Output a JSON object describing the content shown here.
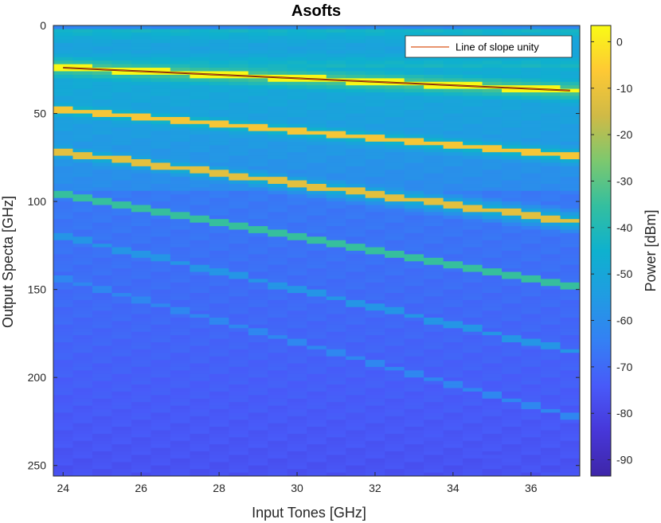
{
  "chart_data": {
    "type": "heatmap",
    "title": "Asofts",
    "xlabel": "Input Tones [GHz]",
    "ylabel": "Output Specta [GHz]",
    "colorbar_label": "Power [dBm]",
    "xlim": [
      23.75,
      37.25
    ],
    "ylim": [
      0,
      256
    ],
    "y_reversed": true,
    "clim": [
      -93.5,
      3.5
    ],
    "colormap": "parula",
    "xticks": [
      "24",
      "26",
      "28",
      "30",
      "32",
      "34",
      "36"
    ],
    "yticks": [
      "0",
      "50",
      "100",
      "150",
      "200",
      "250"
    ],
    "cticks": [
      "0",
      "-10",
      "-20",
      "-30",
      "-40",
      "-50",
      "-60",
      "-70",
      "-80",
      "-90"
    ],
    "input_tones_ghz": [
      24,
      24.5,
      25,
      25.5,
      26,
      26.5,
      27,
      27.5,
      28,
      28.5,
      29,
      29.5,
      30,
      30.5,
      31,
      31.5,
      32,
      32.5,
      33,
      33.5,
      34,
      34.5,
      35,
      35.5,
      36,
      36.5,
      37
    ],
    "harmonics": [
      {
        "order": 1,
        "frequency_ghz": [
          24,
          24.5,
          25,
          25.5,
          26,
          26.5,
          27,
          27.5,
          28,
          28.5,
          29,
          29.5,
          30,
          30.5,
          31,
          31.5,
          32,
          32.5,
          33,
          33.5,
          34,
          34.5,
          35,
          35.5,
          36,
          36.5,
          37
        ],
        "peak_dbm": 3
      },
      {
        "order": 2,
        "frequency_ghz": [
          48,
          49,
          50,
          51,
          52,
          53,
          54,
          55,
          56,
          57,
          58,
          59,
          60,
          61,
          62,
          63,
          64,
          65,
          66,
          67,
          68,
          69,
          70,
          71,
          72,
          73,
          74
        ],
        "peak_dbm": -8
      },
      {
        "order": 3,
        "frequency_ghz": [
          72,
          73.5,
          75,
          76.5,
          78,
          79.5,
          81,
          82.5,
          84,
          85.5,
          87,
          88.5,
          90,
          91.5,
          93,
          94.5,
          96,
          97.5,
          99,
          100.5,
          102,
          103.5,
          105,
          106.5,
          108,
          109.5,
          111
        ],
        "peak_dbm": -12
      },
      {
        "order": 4,
        "frequency_ghz": [
          96,
          98,
          100,
          102,
          104,
          106,
          108,
          110,
          112,
          114,
          116,
          118,
          120,
          122,
          124,
          126,
          128,
          130,
          132,
          134,
          136,
          138,
          140,
          142,
          144,
          146,
          148
        ],
        "peak_dbm": -35
      },
      {
        "order": 5,
        "frequency_ghz": [
          120,
          122.5,
          125,
          127.5,
          130,
          132.5,
          135,
          137.5,
          140,
          142.5,
          145,
          147.5,
          150,
          152.5,
          155,
          157.5,
          160,
          162.5,
          165,
          167.5,
          170,
          172.5,
          175,
          177.5,
          180,
          182.5,
          185
        ],
        "peak_dbm": -57
      },
      {
        "order": 6,
        "frequency_ghz": [
          144,
          147,
          150,
          153,
          156,
          159,
          162,
          165,
          168,
          171,
          174,
          177,
          180,
          183,
          186,
          189,
          192,
          195,
          198,
          201,
          204,
          207,
          210,
          213,
          216,
          219,
          222
        ],
        "peak_dbm": -62
      },
      {
        "order": 7,
        "frequency_ghz": [
          168,
          171.5,
          175,
          178.5,
          182,
          185.5,
          189,
          192.5,
          196,
          199.5,
          203,
          206.5,
          210,
          213.5,
          217,
          220.5,
          224,
          227.5,
          231,
          234.5,
          238,
          241.5,
          245,
          248.5,
          252,
          255.5
        ],
        "peak_dbm": -75
      }
    ],
    "legend": {
      "entries": [
        "Line of slope unity"
      ],
      "location": "top-right"
    },
    "overlay_line": {
      "name": "Line of slope unity",
      "color": "#d95319",
      "x": [
        24,
        37
      ],
      "y": [
        24,
        37
      ]
    }
  }
}
